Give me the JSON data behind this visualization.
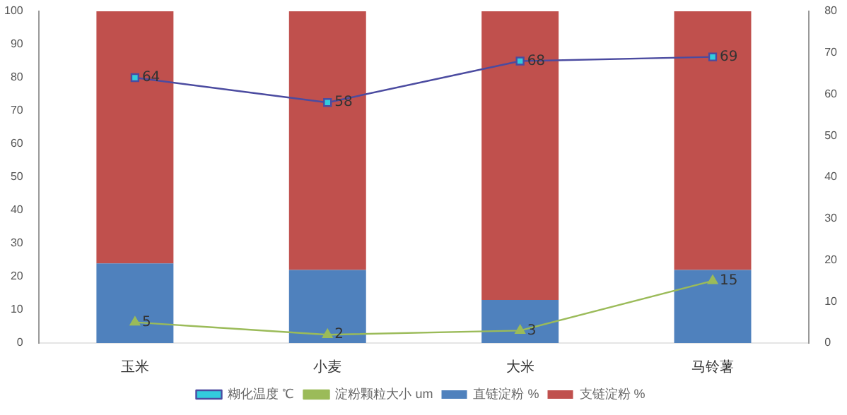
{
  "chart_data": {
    "type": "bar",
    "stacked": true,
    "categories": [
      "玉米",
      "小麦",
      "大米",
      "马铃薯"
    ],
    "series": [
      {
        "name": "直链淀粉 %",
        "color": "#4f81bd",
        "values": [
          24,
          22,
          13,
          22
        ]
      },
      {
        "name": "支链淀粉 %",
        "color": "#c0504d",
        "values": [
          76,
          78,
          87,
          78
        ]
      },
      {
        "name": "糊化温度 ℃",
        "type": "line",
        "axis": "y2",
        "color": "#4b4ba0",
        "marker": "square",
        "values": [
          64,
          58,
          68,
          69
        ],
        "value_labels": [
          "64",
          "58",
          "68",
          "69"
        ]
      },
      {
        "name": "淀粉颗粒大小 um",
        "type": "line",
        "axis": "y2",
        "color": "#9bbb59",
        "marker": "triangle",
        "values": [
          5,
          2,
          3,
          15
        ],
        "value_labels": [
          "5",
          "2",
          "3",
          "15"
        ]
      }
    ],
    "ylim": [
      0,
      100
    ],
    "yticks": [
      0,
      10,
      20,
      30,
      40,
      50,
      60,
      70,
      80,
      90,
      100
    ],
    "y2lim": [
      0,
      80
    ],
    "y2ticks": [
      0,
      10,
      20,
      30,
      40,
      50,
      60,
      70,
      80
    ],
    "grid": false,
    "legend": "bottom"
  }
}
